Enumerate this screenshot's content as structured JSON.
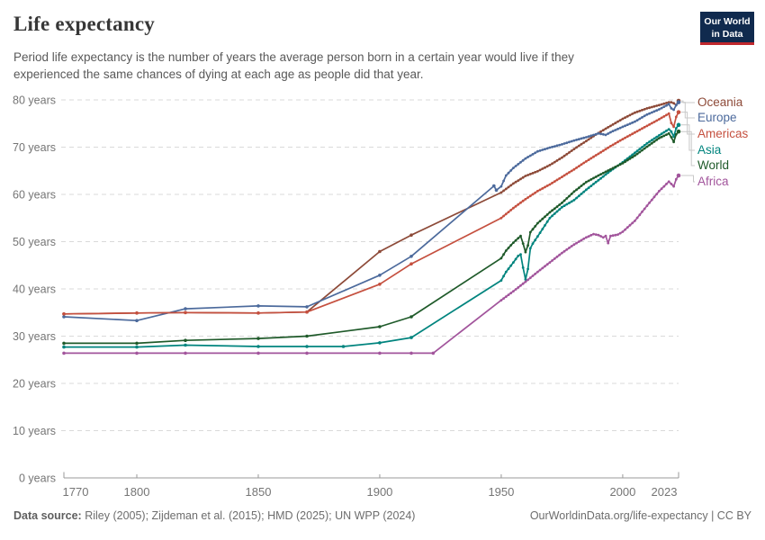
{
  "header": {
    "title": "Life expectancy",
    "subtitle_line1": "Period life expectancy is the number of years the average person born in a certain year would live if they",
    "subtitle_line2": "experienced the same chances of dying at each age as people did that year.",
    "logo": {
      "line1": "Our World",
      "line2": "in Data",
      "bg_color": "#102a4e",
      "accent_color": "#c0282d"
    }
  },
  "chart_data": {
    "type": "line",
    "title": "Life expectancy",
    "xlabel": "",
    "ylabel": "years",
    "xlim": [
      1770,
      2023
    ],
    "ylim": [
      0,
      80
    ],
    "x_ticks": [
      1770,
      1800,
      1850,
      1900,
      1950,
      2000,
      2023
    ],
    "y_ticks": [
      0,
      10,
      20,
      30,
      40,
      50,
      60,
      70,
      80
    ],
    "y_tick_suffix": " years",
    "grid": "horizontal-dashed",
    "legend_position": "right-of-lines",
    "colors": {
      "grid": "#dadada",
      "axis": "#999999",
      "tick_label": "#757575",
      "connector": "#c9c9c9"
    },
    "series": [
      {
        "name": "Oceania",
        "color": "#8d4a38",
        "points": [
          [
            1770,
            34.7
          ],
          [
            1800,
            34.9
          ],
          [
            1820,
            35.0
          ],
          [
            1850,
            34.9
          ],
          [
            1870,
            35.1
          ],
          [
            1900,
            47.9
          ],
          [
            1913,
            51.4
          ],
          [
            1950,
            60.4
          ],
          [
            1955,
            62.3
          ],
          [
            1960,
            63.9
          ],
          [
            1965,
            64.9
          ],
          [
            1970,
            66.2
          ],
          [
            1975,
            67.8
          ],
          [
            1980,
            69.6
          ],
          [
            1985,
            71.3
          ],
          [
            1990,
            73.0
          ],
          [
            1995,
            74.5
          ],
          [
            2000,
            76.0
          ],
          [
            2005,
            77.3
          ],
          [
            2010,
            78.2
          ],
          [
            2015,
            78.9
          ],
          [
            2019,
            79.5
          ],
          [
            2020,
            79.5
          ],
          [
            2021,
            79.3
          ],
          [
            2022,
            78.9
          ],
          [
            2023,
            79.8
          ]
        ]
      },
      {
        "name": "Europe",
        "color": "#4c6a9c",
        "points": [
          [
            1770,
            34.1
          ],
          [
            1800,
            33.3
          ],
          [
            1820,
            35.8
          ],
          [
            1850,
            36.4
          ],
          [
            1870,
            36.2
          ],
          [
            1900,
            42.9
          ],
          [
            1913,
            46.9
          ],
          [
            1947,
            61.8
          ],
          [
            1948,
            60.9
          ],
          [
            1950,
            61.7
          ],
          [
            1952,
            64.0
          ],
          [
            1955,
            65.6
          ],
          [
            1960,
            67.6
          ],
          [
            1965,
            69.1
          ],
          [
            1970,
            69.9
          ],
          [
            1975,
            70.6
          ],
          [
            1980,
            71.4
          ],
          [
            1985,
            72.1
          ],
          [
            1990,
            72.9
          ],
          [
            1993,
            72.6
          ],
          [
            1996,
            73.4
          ],
          [
            2000,
            74.3
          ],
          [
            2005,
            75.4
          ],
          [
            2010,
            76.9
          ],
          [
            2015,
            78.0
          ],
          [
            2019,
            79.1
          ],
          [
            2020,
            78.2
          ],
          [
            2021,
            77.9
          ],
          [
            2022,
            78.9
          ],
          [
            2023,
            79.5
          ]
        ]
      },
      {
        "name": "Americas",
        "color": "#c5503f",
        "points": [
          [
            1770,
            34.7
          ],
          [
            1800,
            34.9
          ],
          [
            1820,
            35.0
          ],
          [
            1850,
            34.9
          ],
          [
            1870,
            35.1
          ],
          [
            1900,
            41.0
          ],
          [
            1913,
            45.3
          ],
          [
            1950,
            55.0
          ],
          [
            1955,
            57.1
          ],
          [
            1960,
            59.0
          ],
          [
            1965,
            60.7
          ],
          [
            1970,
            62.1
          ],
          [
            1975,
            63.7
          ],
          [
            1980,
            65.3
          ],
          [
            1985,
            67.0
          ],
          [
            1990,
            68.6
          ],
          [
            1995,
            70.2
          ],
          [
            2000,
            71.7
          ],
          [
            2005,
            73.1
          ],
          [
            2010,
            74.5
          ],
          [
            2015,
            75.9
          ],
          [
            2019,
            77.1
          ],
          [
            2020,
            75.1
          ],
          [
            2021,
            74.3
          ],
          [
            2022,
            76.4
          ],
          [
            2023,
            77.4
          ]
        ]
      },
      {
        "name": "Asia",
        "color": "#00847e",
        "points": [
          [
            1770,
            27.7
          ],
          [
            1800,
            27.7
          ],
          [
            1820,
            28.1
          ],
          [
            1850,
            27.8
          ],
          [
            1870,
            27.8
          ],
          [
            1885,
            27.8
          ],
          [
            1900,
            28.6
          ],
          [
            1913,
            29.7
          ],
          [
            1950,
            41.8
          ],
          [
            1952,
            43.6
          ],
          [
            1955,
            45.6
          ],
          [
            1957,
            47.0
          ],
          [
            1958,
            47.3
          ],
          [
            1959,
            44.5
          ],
          [
            1960,
            42.0
          ],
          [
            1961,
            44.2
          ],
          [
            1962,
            48.6
          ],
          [
            1963,
            49.6
          ],
          [
            1965,
            51.1
          ],
          [
            1970,
            55.0
          ],
          [
            1975,
            57.3
          ],
          [
            1980,
            58.8
          ],
          [
            1985,
            61.0
          ],
          [
            1990,
            63.0
          ],
          [
            1995,
            65.0
          ],
          [
            2000,
            66.8
          ],
          [
            2005,
            68.8
          ],
          [
            2010,
            70.8
          ],
          [
            2015,
            72.5
          ],
          [
            2019,
            73.8
          ],
          [
            2020,
            73.3
          ],
          [
            2021,
            72.2
          ],
          [
            2022,
            74.0
          ],
          [
            2023,
            74.7
          ]
        ]
      },
      {
        "name": "World",
        "color": "#1f5a2a",
        "points": [
          [
            1770,
            28.5
          ],
          [
            1800,
            28.5
          ],
          [
            1820,
            29.1
          ],
          [
            1850,
            29.5
          ],
          [
            1870,
            30.0
          ],
          [
            1900,
            32.0
          ],
          [
            1913,
            34.1
          ],
          [
            1950,
            46.5
          ],
          [
            1952,
            48.1
          ],
          [
            1955,
            49.8
          ],
          [
            1958,
            51.2
          ],
          [
            1959,
            49.6
          ],
          [
            1960,
            47.8
          ],
          [
            1961,
            49.2
          ],
          [
            1962,
            52.0
          ],
          [
            1965,
            53.9
          ],
          [
            1970,
            56.2
          ],
          [
            1975,
            58.2
          ],
          [
            1980,
            60.6
          ],
          [
            1985,
            62.6
          ],
          [
            1990,
            64.0
          ],
          [
            1995,
            65.3
          ],
          [
            2000,
            66.6
          ],
          [
            2005,
            68.2
          ],
          [
            2010,
            70.1
          ],
          [
            2015,
            71.9
          ],
          [
            2019,
            72.9
          ],
          [
            2020,
            72.1
          ],
          [
            2021,
            71.1
          ],
          [
            2022,
            72.7
          ],
          [
            2023,
            73.3
          ]
        ]
      },
      {
        "name": "Africa",
        "color": "#a2559c",
        "points": [
          [
            1770,
            26.4
          ],
          [
            1800,
            26.4
          ],
          [
            1820,
            26.4
          ],
          [
            1850,
            26.4
          ],
          [
            1870,
            26.4
          ],
          [
            1900,
            26.4
          ],
          [
            1913,
            26.4
          ],
          [
            1922,
            26.4
          ],
          [
            1950,
            37.6
          ],
          [
            1955,
            39.5
          ],
          [
            1960,
            41.5
          ],
          [
            1965,
            43.6
          ],
          [
            1970,
            45.6
          ],
          [
            1975,
            47.6
          ],
          [
            1980,
            49.4
          ],
          [
            1985,
            50.9
          ],
          [
            1988,
            51.6
          ],
          [
            1990,
            51.4
          ],
          [
            1992,
            50.9
          ],
          [
            1993,
            51.2
          ],
          [
            1994,
            49.7
          ],
          [
            1995,
            51.2
          ],
          [
            1998,
            51.5
          ],
          [
            2000,
            52.1
          ],
          [
            2005,
            54.4
          ],
          [
            2010,
            57.6
          ],
          [
            2015,
            60.7
          ],
          [
            2019,
            62.7
          ],
          [
            2020,
            62.2
          ],
          [
            2021,
            61.7
          ],
          [
            2022,
            63.2
          ],
          [
            2023,
            64.0
          ]
        ]
      }
    ]
  },
  "footer": {
    "source_label": "Data source:",
    "source_text": " Riley (2005); Zijdeman et al. (2015); HMD (2025); UN WPP (2024)",
    "credit": "OurWorldinData.org/life-expectancy | CC BY"
  }
}
